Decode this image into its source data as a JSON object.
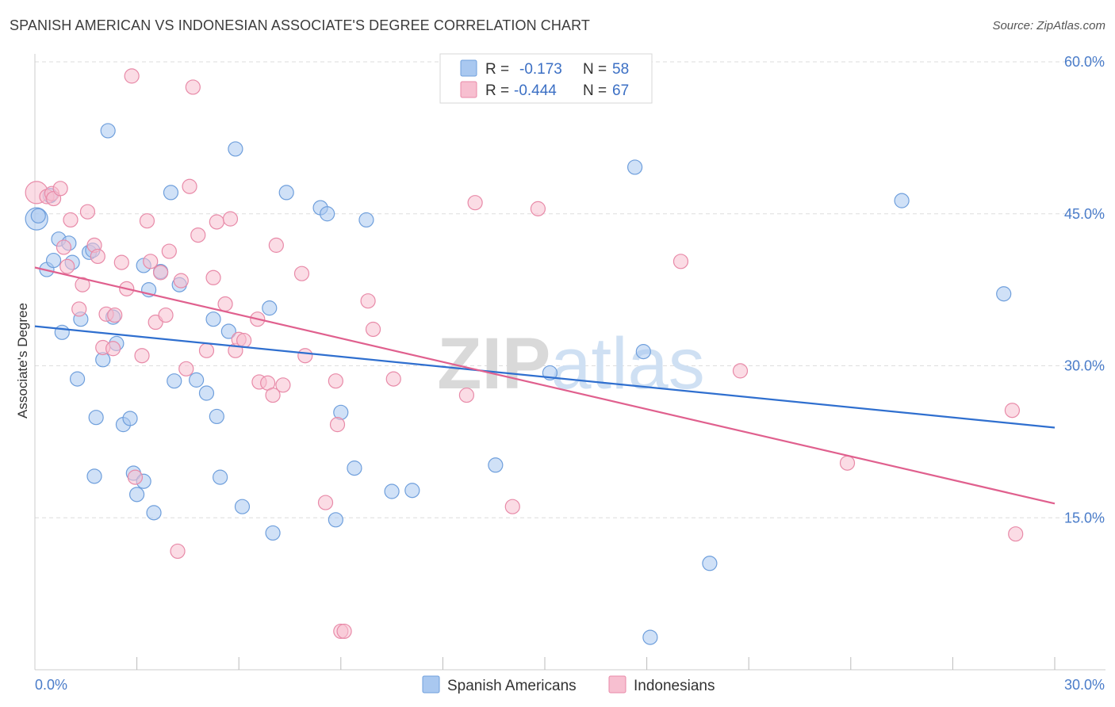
{
  "header": {
    "title": "SPANISH AMERICAN VS INDONESIAN ASSOCIATE'S DEGREE CORRELATION CHART",
    "source": "Source: ZipAtlas.com"
  },
  "watermark": "ZIPatlas",
  "legend_box": {
    "rows": [
      {
        "r_label": "R =",
        "r_value": "-0.173",
        "n_label": "N =",
        "n_value": "58"
      },
      {
        "r_label": "R =",
        "r_value": "-0.444",
        "n_label": "N =",
        "n_value": "67"
      }
    ]
  },
  "colors": {
    "blue_fill": "#a9c8f0",
    "blue_stroke": "#6f9fdc",
    "blue_line": "#2f6fcf",
    "pink_fill": "#f7bfd0",
    "pink_stroke": "#e88aa8",
    "pink_line": "#e0608e",
    "grid": "#dddddd",
    "tick_text": "#4a7cc9"
  },
  "chart_data": {
    "type": "scatter",
    "ylabel": "Associate's Degree",
    "xlim": [
      0,
      30
    ],
    "ylim": [
      0,
      60
    ],
    "y_ticks": [
      {
        "value": 15,
        "label": "15.0%"
      },
      {
        "value": 30,
        "label": "30.0%"
      },
      {
        "value": 45,
        "label": "45.0%"
      },
      {
        "value": 60,
        "label": "60.0%"
      }
    ],
    "x_tick_labels": [
      {
        "value": 0,
        "label": "0.0%"
      },
      {
        "value": 30,
        "label": "30.0%"
      }
    ],
    "x_minor_ticks": [
      3,
      6,
      9,
      12,
      15,
      18,
      21,
      24,
      27,
      30
    ],
    "grid": true,
    "legend_position": "bottom",
    "series": [
      {
        "name": "Spanish Americans",
        "color": "#6f9fdc",
        "trend": {
          "x": [
            0,
            30
          ],
          "y": [
            33.9,
            23.9
          ]
        },
        "points": [
          [
            0.05,
            44.5,
            14
          ],
          [
            0.1,
            44.8,
            9
          ],
          [
            0.35,
            39.5,
            9
          ],
          [
            0.45,
            46.8,
            9
          ],
          [
            0.55,
            40.4,
            9
          ],
          [
            0.7,
            42.5,
            9
          ],
          [
            0.8,
            33.3,
            9
          ],
          [
            1.0,
            42.1,
            9
          ],
          [
            1.1,
            40.2,
            9
          ],
          [
            1.25,
            28.7,
            9
          ],
          [
            1.35,
            34.6,
            9
          ],
          [
            1.6,
            41.2,
            9
          ],
          [
            1.7,
            41.4,
            9
          ],
          [
            2.15,
            53.2,
            9
          ],
          [
            2.3,
            34.8,
            9
          ],
          [
            2.4,
            32.2,
            9
          ],
          [
            2.0,
            30.6,
            9
          ],
          [
            1.8,
            24.9,
            9
          ],
          [
            1.75,
            19.1,
            9
          ],
          [
            2.6,
            24.2,
            9
          ],
          [
            2.8,
            24.8,
            9
          ],
          [
            2.9,
            19.4,
            9
          ],
          [
            3.0,
            17.3,
            9
          ],
          [
            3.2,
            18.6,
            9
          ],
          [
            3.2,
            39.9,
            9
          ],
          [
            3.35,
            37.5,
            9
          ],
          [
            3.5,
            15.5,
            9
          ],
          [
            3.7,
            39.3,
            9
          ],
          [
            4.0,
            47.1,
            9
          ],
          [
            4.1,
            28.5,
            9
          ],
          [
            4.25,
            38.0,
            9
          ],
          [
            4.75,
            28.6,
            9
          ],
          [
            5.05,
            27.3,
            9
          ],
          [
            5.25,
            34.6,
            9
          ],
          [
            5.35,
            25.0,
            9
          ],
          [
            5.45,
            19.0,
            9
          ],
          [
            5.7,
            33.4,
            9
          ],
          [
            5.9,
            51.4,
            9
          ],
          [
            6.1,
            16.1,
            9
          ],
          [
            6.9,
            35.7,
            9
          ],
          [
            7.0,
            13.5,
            9
          ],
          [
            7.4,
            47.1,
            9
          ],
          [
            8.4,
            45.6,
            9
          ],
          [
            8.6,
            45.0,
            9
          ],
          [
            8.85,
            14.8,
            9
          ],
          [
            9.0,
            25.4,
            9
          ],
          [
            9.4,
            19.9,
            9
          ],
          [
            9.75,
            44.4,
            9
          ],
          [
            10.5,
            17.6,
            9
          ],
          [
            11.1,
            17.7,
            9
          ],
          [
            13.55,
            20.2,
            9
          ],
          [
            15.15,
            29.3,
            9
          ],
          [
            17.65,
            49.6,
            9
          ],
          [
            17.9,
            31.4,
            9
          ],
          [
            19.85,
            10.5,
            9
          ],
          [
            18.1,
            3.2,
            9
          ],
          [
            25.5,
            46.3,
            9
          ],
          [
            28.5,
            37.1,
            9
          ]
        ]
      },
      {
        "name": "Indonesians",
        "color": "#e88aa8",
        "trend": {
          "x": [
            0,
            30
          ],
          "y": [
            39.7,
            16.4
          ]
        },
        "points": [
          [
            0.05,
            47.1,
            14
          ],
          [
            0.35,
            46.7,
            9
          ],
          [
            0.5,
            47.0,
            9
          ],
          [
            0.55,
            46.5,
            9
          ],
          [
            0.75,
            47.5,
            9
          ],
          [
            0.85,
            41.7,
            9
          ],
          [
            0.95,
            39.8,
            9
          ],
          [
            1.05,
            44.4,
            9
          ],
          [
            1.3,
            35.6,
            9
          ],
          [
            1.4,
            38.0,
            9
          ],
          [
            1.55,
            45.2,
            9
          ],
          [
            1.75,
            41.9,
            9
          ],
          [
            1.85,
            40.8,
            9
          ],
          [
            2.0,
            31.8,
            9
          ],
          [
            2.1,
            35.1,
            9
          ],
          [
            2.35,
            35.0,
            9
          ],
          [
            2.3,
            31.7,
            9
          ],
          [
            2.55,
            40.2,
            9
          ],
          [
            2.7,
            37.6,
            9
          ],
          [
            2.85,
            58.6,
            9
          ],
          [
            2.95,
            19.0,
            9
          ],
          [
            3.15,
            31.0,
            9
          ],
          [
            3.3,
            44.3,
            9
          ],
          [
            3.4,
            40.3,
            9
          ],
          [
            3.55,
            34.3,
            9
          ],
          [
            3.7,
            39.2,
            9
          ],
          [
            3.85,
            35.0,
            9
          ],
          [
            3.95,
            41.3,
            9
          ],
          [
            4.2,
            11.7,
            9
          ],
          [
            4.3,
            38.4,
            9
          ],
          [
            4.45,
            29.7,
            9
          ],
          [
            4.55,
            47.7,
            9
          ],
          [
            4.65,
            57.5,
            9
          ],
          [
            4.8,
            42.9,
            9
          ],
          [
            5.05,
            31.5,
            9
          ],
          [
            5.25,
            38.7,
            9
          ],
          [
            5.35,
            44.2,
            9
          ],
          [
            5.6,
            36.1,
            9
          ],
          [
            5.75,
            44.5,
            9
          ],
          [
            5.9,
            31.5,
            9
          ],
          [
            6.0,
            32.6,
            9
          ],
          [
            6.15,
            32.5,
            9
          ],
          [
            6.55,
            34.6,
            9
          ],
          [
            6.6,
            28.4,
            9
          ],
          [
            6.85,
            28.3,
            9
          ],
          [
            7.0,
            27.1,
            9
          ],
          [
            7.1,
            41.9,
            9
          ],
          [
            7.3,
            28.1,
            9
          ],
          [
            7.85,
            39.1,
            9
          ],
          [
            7.95,
            31.0,
            9
          ],
          [
            8.55,
            16.5,
            9
          ],
          [
            8.85,
            28.5,
            9
          ],
          [
            8.9,
            24.2,
            9
          ],
          [
            9.0,
            3.8,
            9
          ],
          [
            9.1,
            3.8,
            9
          ],
          [
            9.8,
            36.4,
            9
          ],
          [
            9.95,
            33.6,
            9
          ],
          [
            10.55,
            28.7,
            9
          ],
          [
            12.7,
            27.1,
            9
          ],
          [
            12.95,
            46.1,
            9
          ],
          [
            14.05,
            16.1,
            9
          ],
          [
            14.8,
            45.5,
            9
          ],
          [
            19.0,
            40.3,
            9
          ],
          [
            20.75,
            29.5,
            9
          ],
          [
            23.9,
            20.4,
            9
          ],
          [
            28.75,
            25.6,
            9
          ],
          [
            28.85,
            13.4,
            9
          ]
        ]
      }
    ]
  }
}
